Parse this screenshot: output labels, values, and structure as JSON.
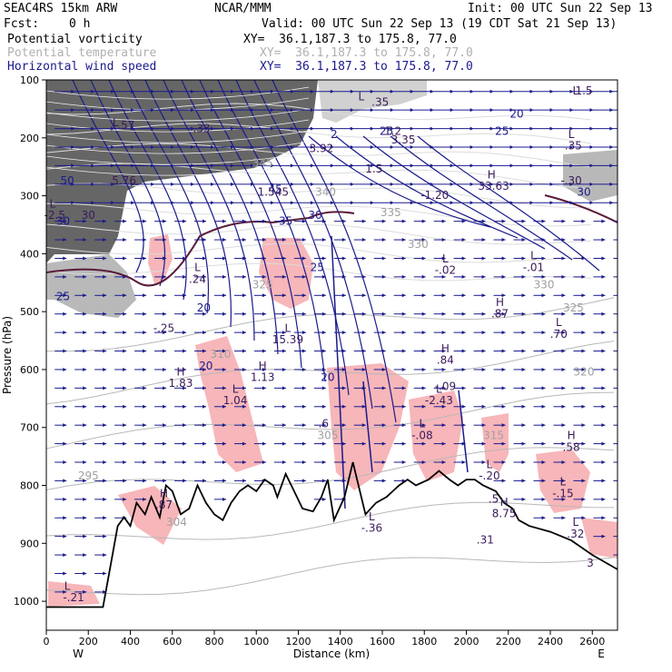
{
  "header": {
    "model": "SEAC4RS 15km ARW",
    "org": "NCAR/MMM",
    "init": "Init: 00 UTC Sun 22 Sep 13",
    "fcst_label": "Fcst:",
    "fcst_value": "0 h",
    "valid": "Valid: 00 UTC Sun 22 Sep 13 (19 CDT Sat 21 Sep 13)",
    "fields": [
      {
        "name": "Potential vorticity",
        "xy": "XY=  36.1,187.3 to 175.8, 77.0",
        "color": "#000000"
      },
      {
        "name": "Potential temperature",
        "xy": "XY=  36.1,187.3 to 175.8, 77.0",
        "color": "#b0b0b0"
      },
      {
        "name": "Horizontal wind speed",
        "xy": "XY=  36.1,187.3 to 175.8, 77.0",
        "color": "#1a1a8c"
      }
    ]
  },
  "chart_data": {
    "type": "cross-section",
    "xlabel": "Distance (km)",
    "ylabel": "Pressure (hPa)",
    "xlim": [
      0,
      2720
    ],
    "ylim": [
      1050,
      100
    ],
    "x_ticks": [
      0,
      200,
      400,
      600,
      800,
      1000,
      1200,
      1400,
      1600,
      1800,
      2000,
      2200,
      2400,
      2600
    ],
    "y_ticks": [
      100,
      200,
      300,
      400,
      500,
      600,
      700,
      800,
      900,
      1000
    ],
    "left_end": "W",
    "right_end": "E",
    "terrain": [
      [
        0,
        1010
      ],
      [
        270,
        1010
      ],
      [
        310,
        930
      ],
      [
        340,
        870
      ],
      [
        370,
        855
      ],
      [
        400,
        870
      ],
      [
        430,
        830
      ],
      [
        470,
        850
      ],
      [
        500,
        820
      ],
      [
        540,
        855
      ],
      [
        570,
        800
      ],
      [
        600,
        810
      ],
      [
        640,
        850
      ],
      [
        680,
        840
      ],
      [
        720,
        800
      ],
      [
        760,
        830
      ],
      [
        800,
        850
      ],
      [
        840,
        860
      ],
      [
        880,
        830
      ],
      [
        920,
        810
      ],
      [
        960,
        800
      ],
      [
        1000,
        810
      ],
      [
        1040,
        790
      ],
      [
        1080,
        800
      ],
      [
        1100,
        820
      ],
      [
        1140,
        780
      ],
      [
        1180,
        810
      ],
      [
        1220,
        840
      ],
      [
        1270,
        845
      ],
      [
        1310,
        820
      ],
      [
        1340,
        790
      ],
      [
        1370,
        860
      ],
      [
        1420,
        820
      ],
      [
        1460,
        760
      ],
      [
        1480,
        790
      ],
      [
        1520,
        850
      ],
      [
        1570,
        830
      ],
      [
        1620,
        820
      ],
      [
        1680,
        800
      ],
      [
        1720,
        790
      ],
      [
        1760,
        800
      ],
      [
        1820,
        790
      ],
      [
        1870,
        775
      ],
      [
        1920,
        790
      ],
      [
        1960,
        800
      ],
      [
        2000,
        790
      ],
      [
        2040,
        790
      ],
      [
        2080,
        800
      ],
      [
        2140,
        810
      ],
      [
        2180,
        830
      ],
      [
        2220,
        840
      ],
      [
        2250,
        860
      ],
      [
        2300,
        870
      ],
      [
        2400,
        880
      ],
      [
        2500,
        895
      ],
      [
        2600,
        920
      ],
      [
        2720,
        945
      ]
    ],
    "pv_labels": [
      {
        "x": 720,
        "p": 430,
        "text": "L"
      },
      {
        "x": 720,
        "p": 450,
        "text": ".24"
      },
      {
        "x": 560,
        "p": 535,
        "text": "-.25"
      },
      {
        "x": 640,
        "p": 610,
        "text": "H"
      },
      {
        "x": 640,
        "p": 630,
        "text": "1.83"
      },
      {
        "x": 900,
        "p": 640,
        "text": "L"
      },
      {
        "x": 900,
        "p": 660,
        "text": "1.04"
      },
      {
        "x": 1030,
        "p": 600,
        "text": "H"
      },
      {
        "x": 1030,
        "p": 620,
        "text": "1.13"
      },
      {
        "x": 1150,
        "p": 535,
        "text": "L"
      },
      {
        "x": 1150,
        "p": 555,
        "text": "15.39"
      },
      {
        "x": 1080,
        "p": 300,
        "text": "1.545"
      },
      {
        "x": 1900,
        "p": 415,
        "text": "L"
      },
      {
        "x": 1900,
        "p": 435,
        "text": "-.02"
      },
      {
        "x": 2320,
        "p": 410,
        "text": "L"
      },
      {
        "x": 2320,
        "p": 430,
        "text": "-.01"
      },
      {
        "x": 2160,
        "p": 490,
        "text": "H"
      },
      {
        "x": 2160,
        "p": 510,
        "text": ".87"
      },
      {
        "x": 2440,
        "p": 525,
        "text": "L"
      },
      {
        "x": 2440,
        "p": 545,
        "text": ".70"
      },
      {
        "x": 1900,
        "p": 570,
        "text": "H"
      },
      {
        "x": 1900,
        "p": 590,
        "text": ".84"
      },
      {
        "x": 1870,
        "p": 640,
        "text": "L"
      },
      {
        "x": 1870,
        "p": 660,
        "text": "-2.43"
      },
      {
        "x": 1900,
        "p": 635,
        "text": "-.09"
      },
      {
        "x": 1790,
        "p": 700,
        "text": "L"
      },
      {
        "x": 1790,
        "p": 720,
        "text": "-.08"
      },
      {
        "x": 2500,
        "p": 720,
        "text": "H"
      },
      {
        "x": 2500,
        "p": 740,
        "text": ".58"
      },
      {
        "x": 2110,
        "p": 770,
        "text": "L"
      },
      {
        "x": 2110,
        "p": 790,
        "text": "-.20"
      },
      {
        "x": 2460,
        "p": 800,
        "text": "L"
      },
      {
        "x": 2460,
        "p": 820,
        "text": "-.15"
      },
      {
        "x": 2180,
        "p": 835,
        "text": "H"
      },
      {
        "x": 2180,
        "p": 855,
        "text": "8.75"
      },
      {
        "x": 2520,
        "p": 870,
        "text": "L"
      },
      {
        "x": 2520,
        "p": 890,
        "text": ".32"
      },
      {
        "x": 1550,
        "p": 860,
        "text": "L"
      },
      {
        "x": 1550,
        "p": 880,
        "text": "-.36"
      },
      {
        "x": 560,
        "p": 820,
        "text": "H"
      },
      {
        "x": 560,
        "p": 840,
        "text": ".87"
      },
      {
        "x": 100,
        "p": 980,
        "text": "L"
      },
      {
        "x": 130,
        "p": 1000,
        "text": "-.21"
      },
      {
        "x": 1850,
        "p": 305,
        "text": "-1.20"
      },
      {
        "x": 2120,
        "p": 270,
        "text": "H"
      },
      {
        "x": 2130,
        "p": 290,
        "text": "33.63"
      },
      {
        "x": 2500,
        "p": 200,
        "text": "L"
      },
      {
        "x": 2510,
        "p": 220,
        "text": ".35"
      },
      {
        "x": 2500,
        "p": 280,
        "text": "-.30"
      },
      {
        "x": 1310,
        "p": 225,
        "text": "3.92"
      },
      {
        "x": 1560,
        "p": 260,
        "text": "1.5"
      },
      {
        "x": 1700,
        "p": 210,
        "text": "3.35"
      },
      {
        "x": 1650,
        "p": 195,
        "text": "1.2"
      },
      {
        "x": 370,
        "p": 280,
        "text": "5.76"
      },
      {
        "x": 30,
        "p": 320,
        "text": "L"
      },
      {
        "x": 40,
        "p": 340,
        "text": "-2.5"
      },
      {
        "x": 200,
        "p": 340,
        "text": "30"
      },
      {
        "x": 1500,
        "p": 135,
        "text": "L"
      },
      {
        "x": 1590,
        "p": 145,
        "text": ".35"
      },
      {
        "x": 2520,
        "p": 125,
        "text": "L"
      },
      {
        "x": 2560,
        "p": 125,
        "text": "1.5"
      },
      {
        "x": 330,
        "p": 180,
        "text": "L"
      },
      {
        "x": 380,
        "p": 185,
        "text": ".57"
      },
      {
        "x": 740,
        "p": 190,
        "text": ".33"
      },
      {
        "x": 1320,
        "p": 700,
        "text": ".6"
      },
      {
        "x": 2130,
        "p": 830,
        "text": ".5"
      },
      {
        "x": 2090,
        "p": 900,
        "text": ".31"
      },
      {
        "x": 2590,
        "p": 940,
        "text": "3"
      }
    ],
    "wind_labels": [
      {
        "x": 750,
        "p": 500,
        "text": "20"
      },
      {
        "x": 1280,
        "p": 340,
        "text": "30"
      },
      {
        "x": 1290,
        "p": 430,
        "text": "25"
      },
      {
        "x": 1340,
        "p": 620,
        "text": "20"
      },
      {
        "x": 760,
        "p": 600,
        "text": "20"
      },
      {
        "x": 1090,
        "p": 295,
        "text": "45"
      },
      {
        "x": 80,
        "p": 480,
        "text": "25"
      },
      {
        "x": 100,
        "p": 280,
        "text": "50"
      },
      {
        "x": 80,
        "p": 350,
        "text": "30"
      },
      {
        "x": 1140,
        "p": 350,
        "text": "35"
      },
      {
        "x": 1370,
        "p": 200,
        "text": "2"
      },
      {
        "x": 1620,
        "p": 195,
        "text": "25"
      },
      {
        "x": 2170,
        "p": 195,
        "text": "25"
      },
      {
        "x": 2560,
        "p": 300,
        "text": "30"
      },
      {
        "x": 2240,
        "p": 165,
        "text": "20"
      }
    ],
    "theta_labels": [
      {
        "x": 1640,
        "p": 335,
        "text": "335"
      },
      {
        "x": 1770,
        "p": 390,
        "text": "330"
      },
      {
        "x": 2370,
        "p": 460,
        "text": "330"
      },
      {
        "x": 2510,
        "p": 500,
        "text": "325"
      },
      {
        "x": 2560,
        "p": 610,
        "text": "320"
      },
      {
        "x": 1030,
        "p": 460,
        "text": "325"
      },
      {
        "x": 830,
        "p": 580,
        "text": "310"
      },
      {
        "x": 1340,
        "p": 720,
        "text": "305"
      },
      {
        "x": 200,
        "p": 790,
        "text": "295"
      },
      {
        "x": 620,
        "p": 870,
        "text": "304"
      },
      {
        "x": 1030,
        "p": 250,
        "text": "345"
      },
      {
        "x": 1330,
        "p": 300,
        "text": "340"
      },
      {
        "x": 2130,
        "p": 720,
        "text": "315"
      }
    ]
  }
}
